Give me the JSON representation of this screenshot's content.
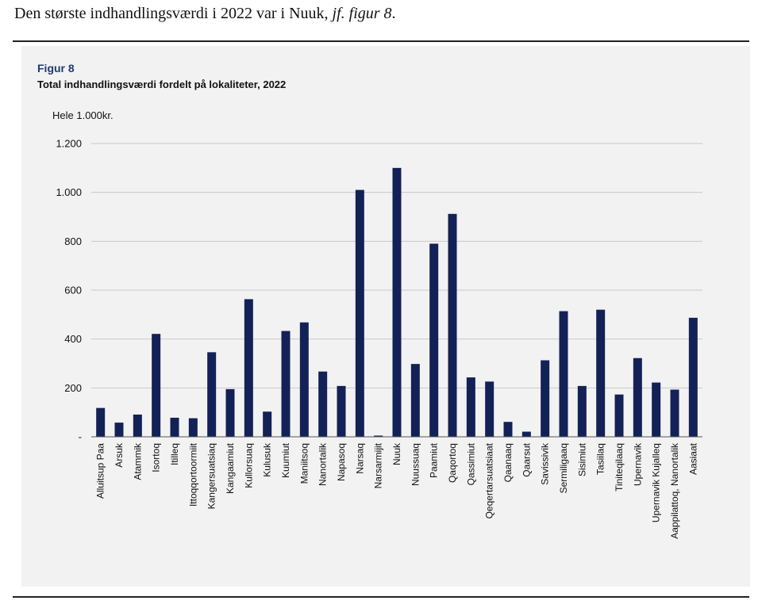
{
  "intro": {
    "text": "Den største indhandlingsværdi i 2022 var i Nuuk, ",
    "ref": "jf. figur 8",
    "end": "."
  },
  "figure": {
    "label": "Figur 8",
    "title": "Total indhandlingsværdi fordelt på lokaliteter, 2022",
    "unit": "Hele 1.000kr."
  },
  "colors": {
    "bar": "#142157",
    "grid": "#c8c8c8",
    "axis": "#555555",
    "panel": "#f2f2f2",
    "accent": "#1f3b72"
  },
  "chart_data": {
    "type": "bar",
    "ylabel": "Hele 1.000kr.",
    "ylim": [
      0,
      1200
    ],
    "yticks": [
      0,
      200,
      400,
      600,
      800,
      1000,
      1200
    ],
    "ytick_labels": [
      "-",
      "200",
      "400",
      "600",
      "800",
      "1.000",
      "1.200"
    ],
    "grid": true,
    "legend": "none",
    "categories": [
      "Alluitsup Paa",
      "Arsuk",
      "Atammik",
      "Isortoq",
      "Itilleq",
      "Ittoqqortoormiit",
      "Kangersuatsiaq",
      "Kangaamiut",
      "Kullorsuaq",
      "Kulusuk",
      "Kuumiut",
      "Maniitsoq",
      "Nanortalik",
      "Napasoq",
      "Narsaq",
      "Narsarmijit",
      "Nuuk",
      "Nuussuaq",
      "Paamiut",
      "Qaqortoq",
      "Qassimiut",
      "Qeqertarsuatsiaat",
      "Qaanaaq",
      "Qaarsut",
      "Savissivik",
      "Sermiligaaq",
      "Sisimiut",
      "Tasiilaq",
      "Tiniteqilaaq",
      "Upernavik",
      "Upernavik Kujalleq",
      "Aappilattoq, Nanortalik",
      "Aasiaat"
    ],
    "values": [
      118,
      58,
      91,
      421,
      78,
      76,
      346,
      195,
      563,
      103,
      433,
      468,
      267,
      208,
      1010,
      5,
      1100,
      298,
      790,
      912,
      243,
      226,
      61,
      21,
      313,
      514,
      208,
      520,
      173,
      322,
      222,
      193,
      487
    ]
  }
}
